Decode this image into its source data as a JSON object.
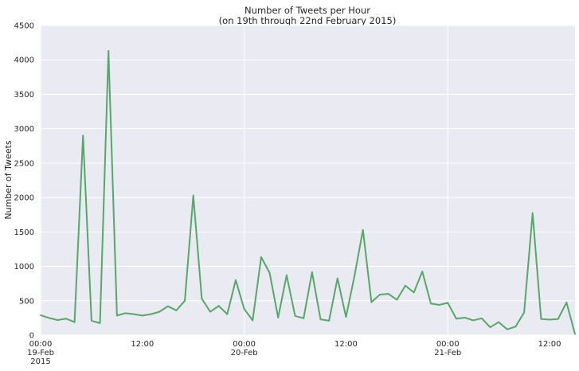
{
  "chart_data": {
    "type": "line",
    "title": "Number of Tweets per Hour",
    "subtitle": "(on 19th through 22nd February 2015)",
    "xlabel": "",
    "ylabel": "Number of Tweets",
    "ylim": [
      0,
      4500
    ],
    "xlim": [
      "2015-02-19 00:00",
      "2015-02-21 15:00"
    ],
    "grid": true,
    "style": {
      "background": "#EAEAF2",
      "grid_color": "#ffffff",
      "line_color": "#55A868"
    },
    "y_ticks": [
      "0",
      "500",
      "1000",
      "1500",
      "2000",
      "2500",
      "3000",
      "3500",
      "4000",
      "4500"
    ],
    "x_ticks": [
      {
        "x": "2015-02-19 00:00",
        "label": [
          "00:00",
          "19-Feb",
          "2015"
        ],
        "major": true
      },
      {
        "x": "2015-02-19 12:00",
        "label": [
          "12:00"
        ],
        "major": false
      },
      {
        "x": "2015-02-20 00:00",
        "label": [
          "00:00",
          "20-Feb"
        ],
        "major": true
      },
      {
        "x": "2015-02-20 12:00",
        "label": [
          "12:00"
        ],
        "major": false
      },
      {
        "x": "2015-02-21 00:00",
        "label": [
          "00:00",
          "21-Feb"
        ],
        "major": true
      },
      {
        "x": "2015-02-21 12:00",
        "label": [
          "12:00"
        ],
        "major": false
      }
    ],
    "x": [
      "2015-02-19 00:00",
      "2015-02-19 01:00",
      "2015-02-19 02:00",
      "2015-02-19 03:00",
      "2015-02-19 04:00",
      "2015-02-19 05:00",
      "2015-02-19 06:00",
      "2015-02-19 07:00",
      "2015-02-19 08:00",
      "2015-02-19 09:00",
      "2015-02-19 10:00",
      "2015-02-19 11:00",
      "2015-02-19 12:00",
      "2015-02-19 13:00",
      "2015-02-19 14:00",
      "2015-02-19 15:00",
      "2015-02-19 16:00",
      "2015-02-19 17:00",
      "2015-02-19 18:00",
      "2015-02-19 19:00",
      "2015-02-19 20:00",
      "2015-02-19 21:00",
      "2015-02-19 22:00",
      "2015-02-19 23:00",
      "2015-02-20 00:00",
      "2015-02-20 01:00",
      "2015-02-20 02:00",
      "2015-02-20 03:00",
      "2015-02-20 04:00",
      "2015-02-20 05:00",
      "2015-02-20 06:00",
      "2015-02-20 07:00",
      "2015-02-20 08:00",
      "2015-02-20 09:00",
      "2015-02-20 10:00",
      "2015-02-20 11:00",
      "2015-02-20 12:00",
      "2015-02-20 13:00",
      "2015-02-20 14:00",
      "2015-02-20 15:00",
      "2015-02-20 16:00",
      "2015-02-20 17:00",
      "2015-02-20 18:00",
      "2015-02-20 19:00",
      "2015-02-20 20:00",
      "2015-02-20 21:00",
      "2015-02-20 22:00",
      "2015-02-20 23:00",
      "2015-02-21 00:00",
      "2015-02-21 01:00",
      "2015-02-21 02:00",
      "2015-02-21 03:00",
      "2015-02-21 04:00",
      "2015-02-21 05:00",
      "2015-02-21 06:00",
      "2015-02-21 07:00",
      "2015-02-21 08:00",
      "2015-02-21 09:00",
      "2015-02-21 10:00",
      "2015-02-21 11:00",
      "2015-02-21 12:00",
      "2015-02-21 13:00",
      "2015-02-21 14:00",
      "2015-02-21 15:00"
    ],
    "series": [
      {
        "values": [
          290,
          250,
          220,
          240,
          190,
          2900,
          210,
          175,
          4130,
          285,
          320,
          305,
          285,
          305,
          340,
          420,
          360,
          500,
          2030,
          530,
          340,
          425,
          305,
          800,
          380,
          215,
          1135,
          905,
          255,
          870,
          280,
          245,
          915,
          230,
          210,
          825,
          265,
          860,
          1530,
          480,
          590,
          600,
          515,
          720,
          620,
          925,
          460,
          440,
          470,
          240,
          255,
          215,
          245,
          115,
          190,
          85,
          125,
          330,
          1775,
          235,
          225,
          235,
          475,
          15
        ]
      }
    ]
  }
}
